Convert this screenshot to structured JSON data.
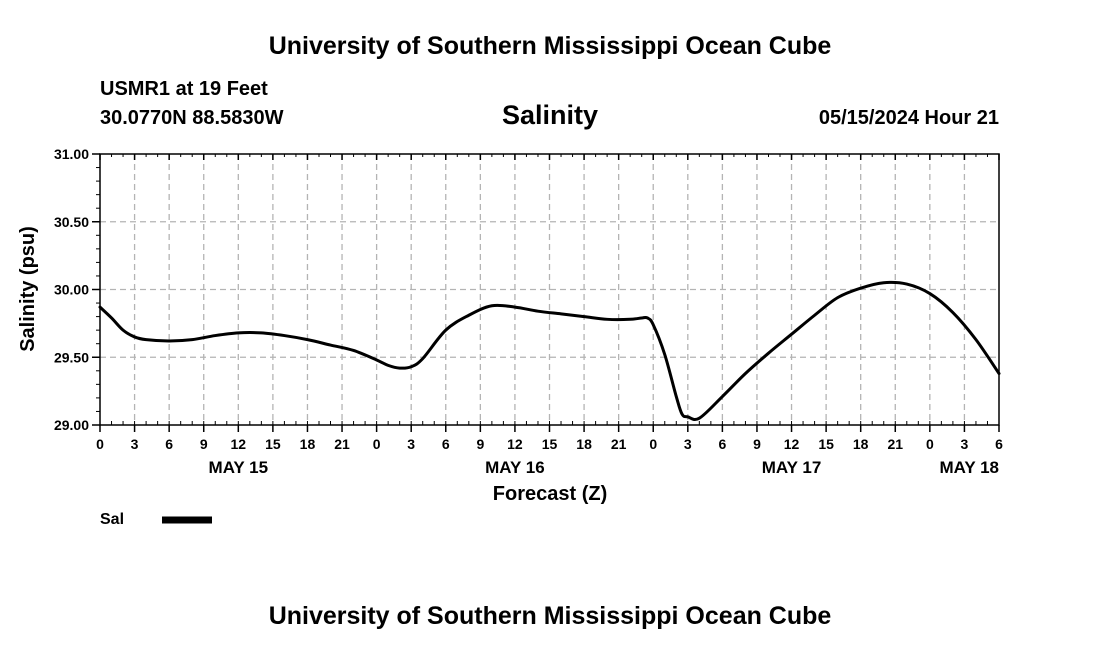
{
  "header": {
    "title": "University of Southern Mississippi Ocean Cube",
    "footer_title": "University of Southern Mississippi Ocean Cube",
    "station": "USMR1 at 19 Feet",
    "coords": "30.0770N  88.5830W",
    "date": "05/15/2024 Hour 21"
  },
  "chart_data": {
    "type": "line",
    "title": "Salinity",
    "xlabel": "Forecast (Z)",
    "ylabel": "Salinity (psu)",
    "ylim": [
      29.0,
      31.0
    ],
    "xlim": [
      0,
      78
    ],
    "grid": true,
    "yticks": [
      29.0,
      29.5,
      30.0,
      30.5,
      31.0
    ],
    "ytick_labels": [
      "29.00",
      "29.50",
      "30.00",
      "30.50",
      "31.00"
    ],
    "xtick_labels": [
      "0",
      "3",
      "6",
      "9",
      "12",
      "15",
      "18",
      "21",
      "0",
      "3",
      "6",
      "9",
      "12",
      "15",
      "18",
      "21",
      "0",
      "3",
      "6",
      "9",
      "12",
      "15",
      "18",
      "21",
      "0",
      "3",
      "6"
    ],
    "day_labels": [
      {
        "label": "MAY 15",
        "hour": 12
      },
      {
        "label": "MAY 16",
        "hour": 36
      },
      {
        "label": "MAY 17",
        "hour": 60
      },
      {
        "label": "MAY 18",
        "hour": 78
      }
    ],
    "series": [
      {
        "name": "Sal",
        "x": [
          0,
          1,
          2,
          3,
          4,
          6,
          8,
          10,
          12,
          14,
          16,
          18,
          20,
          22,
          24,
          25,
          26,
          27,
          28,
          30,
          32,
          34,
          36,
          38,
          40,
          42,
          44,
          46,
          47,
          47.5,
          48,
          49,
          50,
          50.5,
          51,
          52,
          54,
          56,
          58,
          60,
          62,
          64,
          66,
          68,
          70,
          72,
          74,
          76,
          78
        ],
        "values": [
          29.87,
          29.79,
          29.7,
          29.65,
          29.63,
          29.62,
          29.63,
          29.66,
          29.68,
          29.68,
          29.66,
          29.63,
          29.59,
          29.55,
          29.48,
          29.44,
          29.42,
          29.43,
          29.49,
          29.7,
          29.81,
          29.88,
          29.87,
          29.84,
          29.82,
          29.8,
          29.78,
          29.78,
          29.79,
          29.79,
          29.74,
          29.52,
          29.21,
          29.08,
          29.06,
          29.05,
          29.21,
          29.38,
          29.53,
          29.67,
          29.81,
          29.94,
          30.01,
          30.05,
          30.04,
          29.97,
          29.83,
          29.63,
          29.38
        ]
      }
    ],
    "legend": [
      {
        "label": "Sal",
        "color": "#000000"
      }
    ],
    "line_color": "#000000",
    "grid_color": "#b4b4b4"
  }
}
